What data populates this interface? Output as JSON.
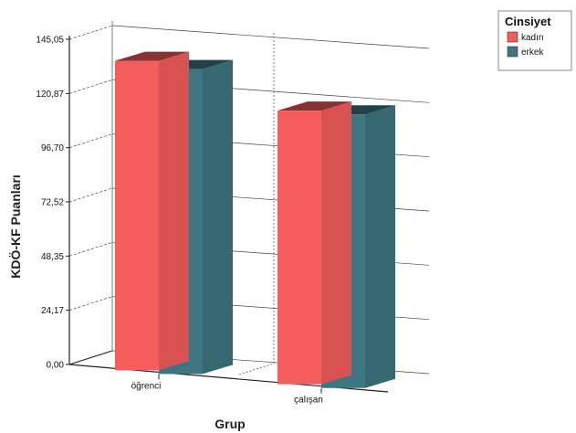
{
  "chart_data": {
    "type": "bar",
    "categories": [
      "öğrenci",
      "çalışan"
    ],
    "series": [
      {
        "name": "kadın",
        "values": [
          138,
          122
        ],
        "color": "#f55d5d"
      },
      {
        "name": "erkek",
        "values": [
          136,
          122
        ],
        "color": "#3d7680"
      }
    ],
    "y_ticks": [
      "0,00",
      "24,17",
      "48,35",
      "72,52",
      "96,70",
      "120,87",
      "145,05"
    ],
    "ylim": [
      0,
      145.05
    ],
    "xlabel": "Grup",
    "ylabel": "KDÖ-KF Puanları",
    "legend_title": "Cinsiyet",
    "legend_position": "top-right",
    "grid": true,
    "style": "3d"
  }
}
